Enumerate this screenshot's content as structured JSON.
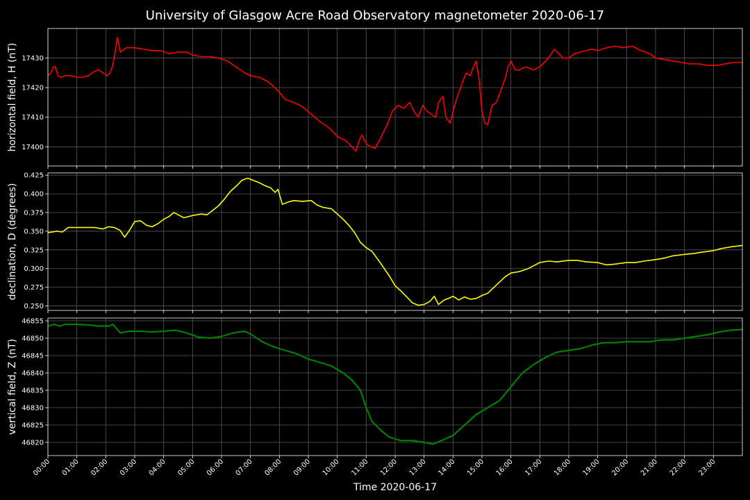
{
  "chart_data": {
    "type": "line",
    "title": "University of Glasgow Acre Road Observatory magnetometer 2020-06-17",
    "xlabel": "Time 2020-06-17",
    "x_tick_labels": [
      "00:00",
      "01:00",
      "02:00",
      "03:00",
      "04:00",
      "05:00",
      "06:00",
      "07:00",
      "08:00",
      "09:00",
      "10:00",
      "11:00",
      "12:00",
      "13:00",
      "14:00",
      "15:00",
      "16:00",
      "17:00",
      "18:00",
      "19:00",
      "20:00",
      "21:00",
      "22:00",
      "23:00"
    ],
    "xlim_hours": [
      0,
      24
    ],
    "grid": true,
    "panels": [
      {
        "ylabel": "horizontal field, H (nT)",
        "color": "#ff0000",
        "ylim": [
          17393.5,
          17440
        ],
        "yticks": [
          17400,
          17410,
          17420,
          17430
        ],
        "x": [
          0,
          0.1,
          0.2,
          0.25,
          0.35,
          0.45,
          0.6,
          0.8,
          1.0,
          1.2,
          1.4,
          1.6,
          1.75,
          1.9,
          2.05,
          2.15,
          2.25,
          2.32,
          2.4,
          2.5,
          2.7,
          3.0,
          3.3,
          3.6,
          3.9,
          4.2,
          4.5,
          4.8,
          5.0,
          5.3,
          5.6,
          5.9,
          6.2,
          6.5,
          6.8,
          7.0,
          7.3,
          7.6,
          7.9,
          8.2,
          8.5,
          8.8,
          9.1,
          9.4,
          9.7,
          10.0,
          10.3,
          10.5,
          10.65,
          10.75,
          10.85,
          11.0,
          11.15,
          11.3,
          11.45,
          11.6,
          11.75,
          11.9,
          12.1,
          12.3,
          12.5,
          12.65,
          12.8,
          12.95,
          13.1,
          13.25,
          13.4,
          13.5,
          13.65,
          13.75,
          13.9,
          14.0,
          14.15,
          14.3,
          14.45,
          14.6,
          14.7,
          14.8,
          14.9,
          15.0,
          15.1,
          15.2,
          15.35,
          15.5,
          15.65,
          15.8,
          15.9,
          16.0,
          16.15,
          16.3,
          16.5,
          16.8,
          17.0,
          17.3,
          17.5,
          17.7,
          17.8,
          18.0,
          18.2,
          18.4,
          18.6,
          18.8,
          19.0,
          19.3,
          19.6,
          19.9,
          20.2,
          20.5,
          20.8,
          21.0,
          21.3,
          21.6,
          21.9,
          22.2,
          22.5,
          22.8,
          23.1,
          23.4,
          23.7,
          24.0
        ],
        "y": [
          17424,
          17425,
          17427,
          17427.2,
          17424,
          17423.5,
          17424,
          17424,
          17423.5,
          17423.5,
          17424,
          17425.5,
          17426,
          17425,
          17424,
          17425,
          17428,
          17432,
          17437,
          17432,
          17433.5,
          17433.5,
          17433,
          17432.5,
          17432.5,
          17431.5,
          17432,
          17432,
          17431,
          17430.5,
          17430.5,
          17430,
          17429,
          17427,
          17425,
          17424,
          17423.5,
          17422,
          17419.5,
          17416,
          17415,
          17413.5,
          17411,
          17408.5,
          17406.5,
          17403.5,
          17402,
          17400,
          17398.5,
          17402,
          17404,
          17401,
          17400,
          17399.5,
          17402,
          17405,
          17408,
          17412,
          17414,
          17413,
          17415,
          17412,
          17410,
          17414,
          17412,
          17411,
          17410,
          17415,
          17417,
          17410,
          17408,
          17412,
          17417,
          17421,
          17425,
          17424,
          17427,
          17429,
          17423,
          17412,
          17408,
          17407.5,
          17414,
          17415,
          17419,
          17423,
          17427,
          17429,
          17426,
          17426,
          17427,
          17426,
          17427,
          17430,
          17433,
          17431,
          17430,
          17430,
          17431.5,
          17432,
          17432.5,
          17433,
          17432.5,
          17433.5,
          17434,
          17433.5,
          17434,
          17432.5,
          17431.5,
          17430,
          17429.5,
          17429,
          17428.5,
          17428,
          17428,
          17427.5,
          17427.5,
          17428,
          17428.5,
          17428.5
        ]
      },
      {
        "ylabel": "declination, D (degrees)",
        "color": "#ffff00",
        "ylim": [
          0.244,
          0.428
        ],
        "yticks": [
          0.25,
          0.275,
          0.3,
          0.325,
          0.35,
          0.375,
          0.4,
          0.425
        ],
        "ytick_labels": [
          "0.250",
          "0.275",
          "0.300",
          "0.325",
          "0.350",
          "0.375",
          "0.400",
          "0.425"
        ],
        "x": [
          0,
          0.3,
          0.5,
          0.7,
          1.0,
          1.3,
          1.6,
          1.9,
          2.1,
          2.3,
          2.5,
          2.65,
          2.8,
          3.0,
          3.2,
          3.4,
          3.6,
          3.8,
          4.0,
          4.2,
          4.35,
          4.5,
          4.7,
          5.0,
          5.3,
          5.5,
          5.7,
          5.9,
          6.1,
          6.3,
          6.5,
          6.7,
          6.9,
          7.1,
          7.3,
          7.5,
          7.7,
          7.85,
          7.95,
          8.1,
          8.3,
          8.5,
          8.8,
          9.1,
          9.3,
          9.5,
          9.8,
          10.0,
          10.2,
          10.4,
          10.6,
          10.8,
          11.0,
          11.2,
          11.5,
          11.8,
          12.0,
          12.2,
          12.4,
          12.6,
          12.8,
          13.0,
          13.2,
          13.35,
          13.5,
          13.7,
          13.9,
          14.0,
          14.2,
          14.4,
          14.6,
          14.8,
          15.0,
          15.2,
          15.5,
          15.8,
          16.0,
          16.3,
          16.6,
          17.0,
          17.3,
          17.6,
          18.0,
          18.3,
          18.6,
          19.0,
          19.3,
          19.6,
          20.0,
          20.3,
          20.6,
          21.0,
          21.3,
          21.6,
          22.0,
          22.3,
          22.6,
          23.0,
          23.3,
          23.6,
          24.0
        ],
        "y": [
          0.348,
          0.35,
          0.349,
          0.355,
          0.355,
          0.355,
          0.355,
          0.353,
          0.356,
          0.355,
          0.351,
          0.342,
          0.35,
          0.363,
          0.364,
          0.358,
          0.356,
          0.36,
          0.366,
          0.37,
          0.375,
          0.372,
          0.368,
          0.371,
          0.373,
          0.372,
          0.378,
          0.384,
          0.393,
          0.403,
          0.41,
          0.418,
          0.421,
          0.418,
          0.415,
          0.411,
          0.408,
          0.402,
          0.406,
          0.386,
          0.389,
          0.391,
          0.39,
          0.391,
          0.385,
          0.382,
          0.38,
          0.373,
          0.366,
          0.358,
          0.348,
          0.335,
          0.328,
          0.323,
          0.307,
          0.29,
          0.277,
          0.27,
          0.262,
          0.254,
          0.251,
          0.252,
          0.256,
          0.263,
          0.252,
          0.258,
          0.261,
          0.263,
          0.258,
          0.262,
          0.259,
          0.26,
          0.264,
          0.267,
          0.278,
          0.289,
          0.294,
          0.296,
          0.3,
          0.308,
          0.31,
          0.309,
          0.311,
          0.311,
          0.309,
          0.308,
          0.305,
          0.306,
          0.308,
          0.308,
          0.31,
          0.312,
          0.314,
          0.317,
          0.319,
          0.32,
          0.322,
          0.324,
          0.327,
          0.329,
          0.331
        ]
      },
      {
        "ylabel": "vertical field, Z (nT)",
        "color": "#008000",
        "ylim": [
          46816.2,
          46855.8
        ],
        "yticks": [
          46820,
          46825,
          46830,
          46835,
          46840,
          46845,
          46850,
          46855
        ],
        "x": [
          0,
          0.2,
          0.4,
          0.6,
          1.0,
          1.4,
          1.8,
          2.1,
          2.25,
          2.35,
          2.5,
          2.8,
          3.2,
          3.6,
          4.0,
          4.4,
          4.8,
          5.2,
          5.6,
          6.0,
          6.4,
          6.8,
          7.0,
          7.4,
          7.8,
          8.2,
          8.6,
          9.0,
          9.4,
          9.8,
          10.2,
          10.5,
          10.8,
          11.0,
          11.2,
          11.5,
          11.8,
          12.2,
          12.6,
          13.0,
          13.3,
          13.6,
          14.0,
          14.4,
          14.8,
          15.2,
          15.6,
          16.0,
          16.4,
          16.8,
          17.2,
          17.6,
          18.0,
          18.4,
          18.8,
          19.2,
          19.6,
          20.0,
          20.4,
          20.8,
          21.2,
          21.6,
          22.0,
          22.4,
          22.8,
          23.2,
          23.6,
          24.0
        ],
        "y": [
          46853.5,
          46854,
          46853.5,
          46854,
          46854,
          46853.8,
          46853.5,
          46853.5,
          46854,
          46853,
          46851.5,
          46852,
          46852,
          46851.8,
          46852,
          46852.3,
          46851.5,
          46850.3,
          46850,
          46850.5,
          46851.5,
          46852,
          46851.2,
          46849,
          46847.5,
          46846.5,
          46845.5,
          46844,
          46843,
          46842,
          46840,
          46838,
          46835,
          46830,
          46826,
          46823.5,
          46821.5,
          46820.5,
          46820.5,
          46820,
          46819.5,
          46820.5,
          46822,
          46825,
          46828,
          46830,
          46832,
          46836,
          46840,
          46842.5,
          46844.5,
          46846,
          46846.5,
          46847,
          46848,
          46848.7,
          46848.7,
          46849,
          46849,
          46849,
          46849.5,
          46849.5,
          46850,
          46850.5,
          46851,
          46851.8,
          46852.3,
          46852.5
        ]
      }
    ]
  }
}
